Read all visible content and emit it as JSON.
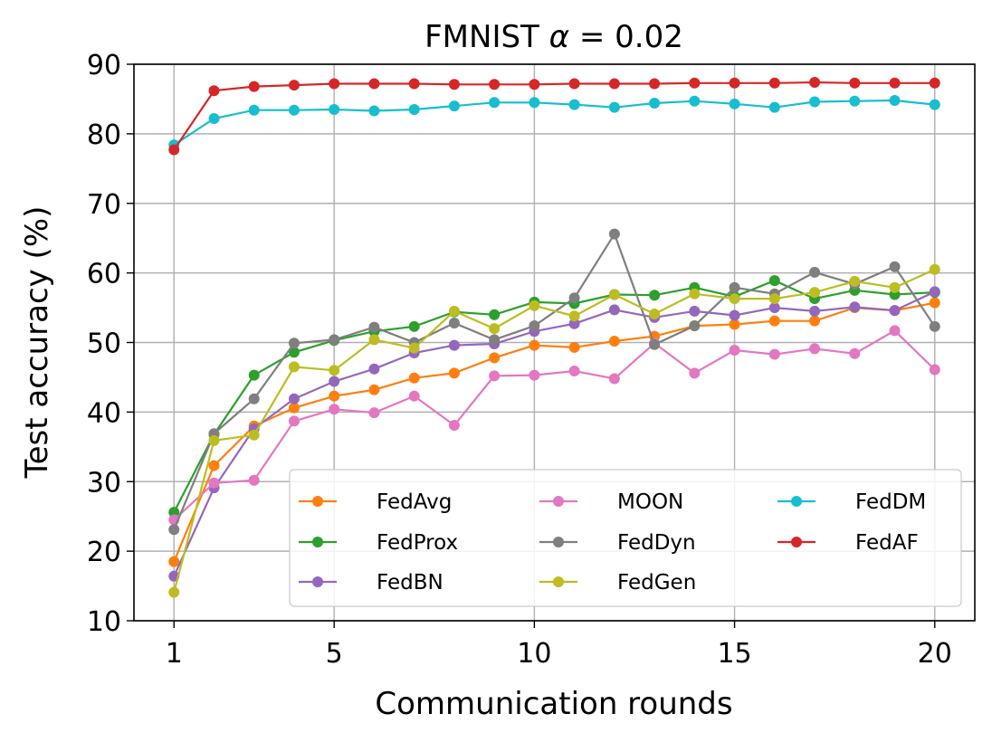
{
  "chart_data": {
    "type": "line",
    "title": "FMNIST α = 0.02",
    "title_parts": {
      "prefix": "FMNIST ",
      "symbol": "α",
      "suffix": " = 0.02"
    },
    "xlabel": "Communication rounds",
    "ylabel": "Test accuracy (%)",
    "xlim": [
      0,
      21
    ],
    "ylim": [
      10,
      90
    ],
    "xticks": [
      1,
      5,
      10,
      15,
      20
    ],
    "yticks": [
      10,
      20,
      30,
      40,
      50,
      60,
      70,
      80,
      90
    ],
    "grid": true,
    "legend_position": "lower-right",
    "legend_columns": 3,
    "x": [
      1,
      2,
      3,
      4,
      5,
      6,
      7,
      8,
      9,
      10,
      11,
      12,
      13,
      14,
      15,
      16,
      17,
      18,
      19,
      20
    ],
    "series": [
      {
        "name": "FedAvg",
        "color": "#ff7f0e",
        "values": [
          18.5,
          32.3,
          38.0,
          40.6,
          42.3,
          43.2,
          44.9,
          45.6,
          47.8,
          49.6,
          49.3,
          50.2,
          50.9,
          52.4,
          52.6,
          53.1,
          53.1,
          55.0,
          54.6,
          55.7
        ]
      },
      {
        "name": "FedProx",
        "color": "#2ca02c",
        "values": [
          25.6,
          36.8,
          45.3,
          48.6,
          50.3,
          51.6,
          52.3,
          54.4,
          54.0,
          55.8,
          55.6,
          56.9,
          56.8,
          57.9,
          56.6,
          58.9,
          56.3,
          57.5,
          56.9,
          57.2
        ]
      },
      {
        "name": "FedBN",
        "color": "#9467bd",
        "values": [
          16.4,
          29.1,
          37.6,
          41.9,
          44.4,
          46.2,
          48.5,
          49.6,
          49.8,
          51.6,
          52.7,
          54.7,
          53.6,
          54.5,
          53.9,
          55.0,
          54.5,
          55.1,
          54.6,
          57.3
        ]
      },
      {
        "name": "MOON",
        "color": "#e377c2",
        "values": [
          24.5,
          29.8,
          30.2,
          38.7,
          40.4,
          39.9,
          42.3,
          38.1,
          45.2,
          45.3,
          45.9,
          44.8,
          49.9,
          45.6,
          48.9,
          48.3,
          49.1,
          48.4,
          51.7,
          46.1
        ]
      },
      {
        "name": "FedDyn",
        "color": "#7f7f7f",
        "values": [
          23.1,
          36.9,
          41.9,
          49.9,
          50.4,
          52.2,
          50.0,
          52.8,
          50.4,
          52.4,
          56.4,
          65.6,
          49.7,
          52.4,
          57.9,
          57.0,
          60.1,
          58.4,
          60.9,
          52.3
        ]
      },
      {
        "name": "FedGen",
        "color": "#bcbd22",
        "values": [
          14.1,
          35.9,
          36.7,
          46.5,
          46.0,
          50.4,
          49.2,
          54.5,
          52.0,
          55.3,
          53.8,
          56.9,
          54.1,
          57.0,
          56.3,
          56.3,
          57.2,
          58.8,
          57.9,
          60.5
        ]
      },
      {
        "name": "FedDM",
        "color": "#17becf",
        "values": [
          78.4,
          82.2,
          83.4,
          83.4,
          83.5,
          83.3,
          83.5,
          84.0,
          84.5,
          84.5,
          84.2,
          83.8,
          84.4,
          84.7,
          84.3,
          83.8,
          84.6,
          84.7,
          84.8,
          84.2
        ]
      },
      {
        "name": "FedAF",
        "color": "#d62728",
        "values": [
          77.7,
          86.2,
          86.8,
          87.0,
          87.2,
          87.2,
          87.2,
          87.1,
          87.1,
          87.1,
          87.2,
          87.2,
          87.2,
          87.3,
          87.3,
          87.3,
          87.4,
          87.3,
          87.3,
          87.3
        ]
      }
    ]
  }
}
